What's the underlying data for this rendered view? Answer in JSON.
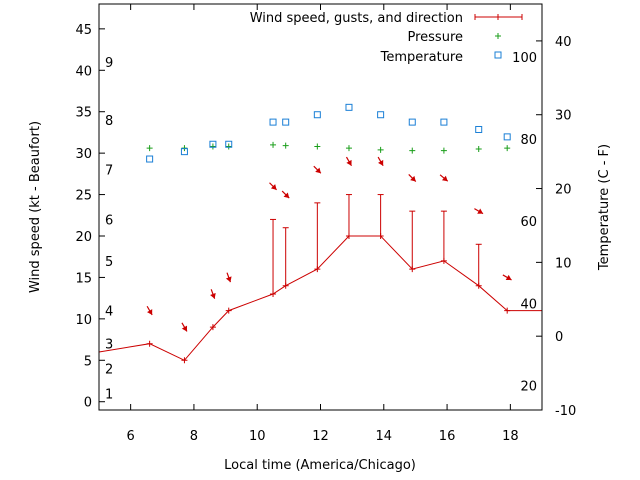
{
  "chart_data": {
    "type": "line",
    "xlabel": "Local time (America/Chicago)",
    "ylabel": "Wind speed (kt - Beaufort)",
    "y2label": "Temperature (C - F)",
    "xlim": [
      5,
      19
    ],
    "ylim": [
      -1,
      48
    ],
    "y2lim": [
      -10,
      45
    ],
    "grid": false,
    "legend_position": "top-right",
    "x_ticks": [
      "6",
      "8",
      "10",
      "12",
      "14",
      "16",
      "18"
    ],
    "y_ticks": [
      "0",
      "5",
      "10",
      "15",
      "20",
      "25",
      "30",
      "35",
      "40",
      "45"
    ],
    "y2_ticks": [
      "-10",
      "0",
      "10",
      "20",
      "30",
      "40"
    ],
    "beaufort_labels": [
      {
        "label": "1",
        "kt": 1
      },
      {
        "label": "2",
        "kt": 4
      },
      {
        "label": "3",
        "kt": 7
      },
      {
        "label": "4",
        "kt": 11
      },
      {
        "label": "5",
        "kt": 17
      },
      {
        "label": "6",
        "kt": 22
      },
      {
        "label": "7",
        "kt": 28
      },
      {
        "label": "8",
        "kt": 34
      },
      {
        "label": "9",
        "kt": 41
      }
    ],
    "fahrenheit_labels": [
      {
        "label": "20",
        "c": -6.7
      },
      {
        "label": "40",
        "c": 4.4
      },
      {
        "label": "60",
        "c": 15.6
      },
      {
        "label": "80",
        "c": 26.7
      },
      {
        "label": "100",
        "c": 37.8
      }
    ],
    "series": [
      {
        "name": "Wind speed, gusts, and direction",
        "color": "#cc0000",
        "x": [
          5,
          6.6,
          7.7,
          8.6,
          9.1,
          10.5,
          10.9,
          11.9,
          12.9,
          13.9,
          14.9,
          15.9,
          17.0,
          17.9,
          19
        ],
        "values": [
          6,
          7,
          5,
          9,
          11,
          13,
          14,
          16,
          20,
          20,
          16,
          17,
          14,
          11,
          11
        ],
        "gusts": [
          null,
          null,
          null,
          null,
          null,
          22,
          21,
          24,
          25,
          25,
          23,
          23,
          19,
          null,
          null
        ],
        "direction_deg": [
          null,
          330,
          330,
          340,
          340,
          315,
          315,
          315,
          330,
          330,
          315,
          310,
          300,
          300,
          null
        ],
        "arrow_level": [
          null,
          11,
          9,
          13,
          15,
          26,
          25,
          28,
          29,
          29,
          27,
          27,
          23,
          15,
          null
        ]
      },
      {
        "name": "Pressure",
        "color": "#1a9e1a",
        "x": [
          6.6,
          7.7,
          8.6,
          9.1,
          10.5,
          10.9,
          11.9,
          12.9,
          13.9,
          14.9,
          15.9,
          17.0,
          17.9
        ],
        "values": [
          30.6,
          30.6,
          30.8,
          30.8,
          31.0,
          30.9,
          30.8,
          30.6,
          30.4,
          30.3,
          30.3,
          30.5,
          30.6
        ]
      },
      {
        "name": "Temperature",
        "color": "#1a7fd6",
        "axis": "y2",
        "x": [
          6.6,
          7.7,
          8.6,
          9.1,
          10.5,
          10.9,
          11.9,
          12.9,
          13.9,
          14.9,
          15.9,
          17.0,
          17.9
        ],
        "values": [
          24,
          25,
          26,
          26,
          29,
          29,
          30,
          31,
          30,
          29,
          29,
          28,
          27
        ]
      }
    ]
  }
}
